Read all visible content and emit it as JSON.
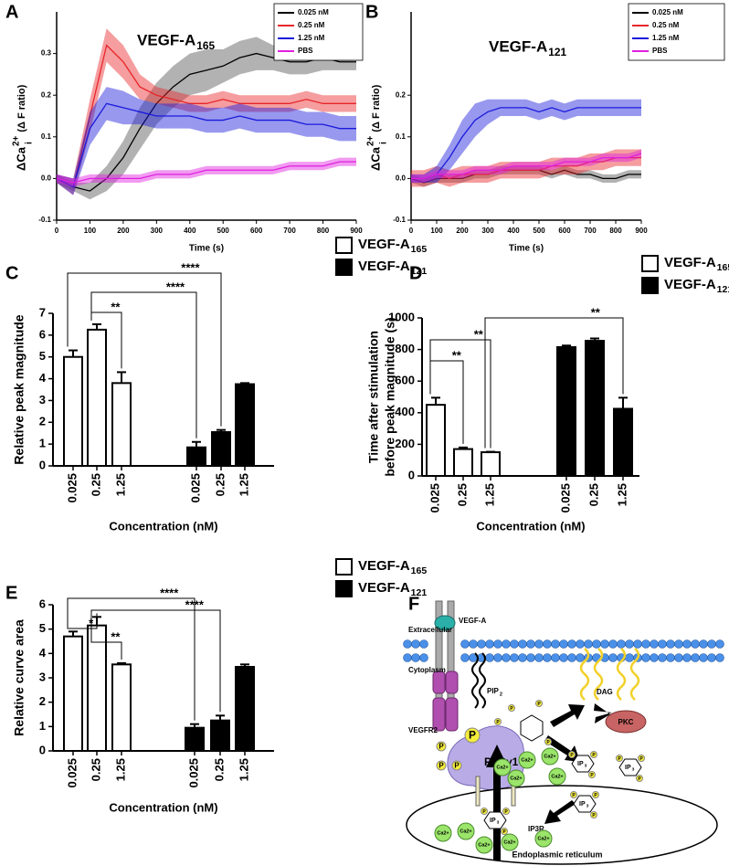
{
  "chart_data": [
    {
      "type": "line",
      "panel_label": "A",
      "title": "VEGF-A",
      "title_subscript": "165",
      "ylabel": "ΔCa",
      "ylabel_superscript": "2+",
      "ylabel_subscript": "i",
      "ylabel_suffix": "(Δ F ratio)",
      "xlabel": "Time (s)",
      "legend": "upper right",
      "x": [
        0,
        50,
        100,
        150,
        200,
        250,
        300,
        350,
        400,
        450,
        500,
        550,
        600,
        650,
        700,
        750,
        800,
        850,
        900
      ],
      "xlim": [
        0,
        900
      ],
      "xticks": [
        0,
        100,
        200,
        300,
        400,
        500,
        600,
        700,
        800,
        900
      ],
      "ylim": [
        -0.1,
        0.4
      ],
      "yticks": [
        -0.1,
        {
          "value": 0,
          "label": "0.0"
        },
        0.1,
        0.2,
        0.3
      ],
      "series": [
        {
          "name": "0.025 nM",
          "color": "#000000",
          "values": [
            0,
            -0.02,
            -0.03,
            0,
            0.05,
            0.12,
            0.18,
            0.22,
            0.25,
            0.26,
            0.27,
            0.29,
            0.3,
            0.29,
            0.28,
            0.28,
            0.29,
            0.28,
            0.28
          ],
          "error": [
            0.01,
            0.01,
            0.02,
            0.03,
            0.04,
            0.05,
            0.05,
            0.05,
            0.05,
            0.05,
            0.04,
            0.04,
            0.04,
            0.03,
            0.03,
            0.03,
            0.03,
            0.02,
            0.02
          ]
        },
        {
          "name": "0.25 nM",
          "color": "#e8262a",
          "values": [
            0,
            -0.02,
            0.15,
            0.32,
            0.28,
            0.22,
            0.2,
            0.19,
            0.18,
            0.18,
            0.19,
            0.18,
            0.18,
            0.18,
            0.18,
            0.19,
            0.18,
            0.18,
            0.18
          ],
          "error": [
            0.01,
            0.02,
            0.04,
            0.04,
            0.04,
            0.03,
            0.02,
            0.02,
            0.02,
            0.02,
            0.02,
            0.02,
            0.02,
            0.02,
            0.02,
            0.02,
            0.02,
            0.02,
            0.02
          ]
        },
        {
          "name": "1.25 nM",
          "color": "#1a1adb",
          "values": [
            0,
            -0.02,
            0.12,
            0.18,
            0.17,
            0.16,
            0.15,
            0.15,
            0.15,
            0.14,
            0.14,
            0.15,
            0.14,
            0.14,
            0.14,
            0.13,
            0.13,
            0.12,
            0.12
          ],
          "error": [
            0.01,
            0.02,
            0.04,
            0.04,
            0.04,
            0.03,
            0.03,
            0.03,
            0.03,
            0.03,
            0.03,
            0.03,
            0.03,
            0.03,
            0.03,
            0.03,
            0.03,
            0.03,
            0.03
          ]
        },
        {
          "name": "PBS",
          "color": "#e020e0",
          "values": [
            0,
            -0.01,
            0,
            0,
            0,
            0,
            0.01,
            0.01,
            0.01,
            0.02,
            0.02,
            0.02,
            0.02,
            0.02,
            0.03,
            0.03,
            0.03,
            0.04,
            0.04
          ],
          "error": [
            0.01,
            0.01,
            0.01,
            0.01,
            0.01,
            0.01,
            0.01,
            0.01,
            0.01,
            0.01,
            0.01,
            0.01,
            0.01,
            0.01,
            0.01,
            0.01,
            0.01,
            0.01,
            0.01
          ]
        }
      ]
    },
    {
      "type": "line",
      "panel_label": "B",
      "title": "VEGF-A",
      "title_subscript": "121",
      "ylabel": "ΔCa",
      "ylabel_superscript": "2+",
      "ylabel_subscript": "i",
      "ylabel_suffix": "(Δ F ratio)",
      "xlabel": "Time (s)",
      "legend": "upper right",
      "x": [
        0,
        50,
        100,
        150,
        200,
        250,
        300,
        350,
        400,
        450,
        500,
        550,
        600,
        650,
        700,
        750,
        800,
        850,
        900
      ],
      "xlim": [
        0,
        900
      ],
      "xticks": [
        0,
        100,
        200,
        300,
        400,
        500,
        600,
        700,
        800,
        900
      ],
      "ylim": [
        -0.1,
        0.4
      ],
      "yticks": [
        -0.1,
        {
          "value": 0,
          "label": "0.0"
        },
        0.1,
        0.2
      ],
      "series": [
        {
          "name": "0.025 nM",
          "color": "#000000",
          "values": [
            0,
            -0.01,
            0,
            0,
            0,
            0.01,
            0.01,
            0.02,
            0.02,
            0.02,
            0.02,
            0.01,
            0.02,
            0.01,
            0.01,
            0,
            0,
            0.01,
            0.01
          ],
          "error": [
            0.01,
            0.01,
            0.01,
            0.01,
            0.01,
            0.01,
            0.01,
            0.01,
            0.01,
            0.01,
            0.01,
            0.01,
            0.01,
            0.01,
            0.01,
            0.01,
            0.01,
            0.01,
            0.01
          ]
        },
        {
          "name": "0.25 nM",
          "color": "#e8262a",
          "values": [
            0,
            0,
            0.01,
            0,
            0.01,
            0.01,
            0.01,
            0.02,
            0.02,
            0.02,
            0.02,
            0.03,
            0.03,
            0.03,
            0.04,
            0.04,
            0.05,
            0.05,
            0.05
          ],
          "error": [
            0.02,
            0.02,
            0.02,
            0.02,
            0.02,
            0.02,
            0.02,
            0.02,
            0.02,
            0.02,
            0.02,
            0.02,
            0.02,
            0.02,
            0.02,
            0.02,
            0.02,
            0.02,
            0.02
          ]
        },
        {
          "name": "1.25 nM",
          "color": "#1a1adb",
          "values": [
            0,
            0,
            0.01,
            0.05,
            0.1,
            0.14,
            0.16,
            0.17,
            0.17,
            0.17,
            0.16,
            0.17,
            0.16,
            0.17,
            0.17,
            0.17,
            0.17,
            0.17,
            0.17
          ],
          "error": [
            0.01,
            0.01,
            0.02,
            0.03,
            0.04,
            0.04,
            0.03,
            0.02,
            0.02,
            0.02,
            0.02,
            0.02,
            0.02,
            0.02,
            0.02,
            0.02,
            0.02,
            0.02,
            0.02
          ]
        },
        {
          "name": "PBS",
          "color": "#e020e0",
          "values": [
            0,
            0,
            0.01,
            0.01,
            0.01,
            0.02,
            0.02,
            0.02,
            0.03,
            0.03,
            0.03,
            0.03,
            0.04,
            0.04,
            0.04,
            0.05,
            0.05,
            0.05,
            0.06
          ],
          "error": [
            0.01,
            0.01,
            0.01,
            0.01,
            0.01,
            0.01,
            0.01,
            0.01,
            0.01,
            0.01,
            0.01,
            0.01,
            0.01,
            0.01,
            0.01,
            0.01,
            0.01,
            0.01,
            0.01
          ]
        }
      ]
    },
    {
      "type": "bar",
      "panel_label": "C",
      "ylabel": "Relative peak magnitude",
      "xlabel": "Concentration (nM)",
      "categories": [
        "0.025",
        "0.25",
        "1.25"
      ],
      "ylim": [
        0,
        7
      ],
      "yticks": [
        0,
        1,
        2,
        3,
        4,
        5,
        6,
        7
      ],
      "series": [
        {
          "name": "VEGF-A",
          "name_subscript": "165",
          "color": "#ffffff",
          "values": [
            5.0,
            6.25,
            3.8
          ],
          "error": [
            0.3,
            0.25,
            0.5
          ]
        },
        {
          "name": "VEGF-A",
          "name_subscript": "121",
          "color": "#000000",
          "values": [
            0.85,
            1.55,
            3.75
          ],
          "error": [
            0.25,
            0.1,
            0.05
          ]
        }
      ],
      "significance": [
        {
          "from": [
            0,
            0
          ],
          "to": [
            1,
            1
          ],
          "label": "****"
        },
        {
          "from": [
            0,
            1
          ],
          "to": [
            1,
            0
          ],
          "label": "****"
        },
        {
          "from": [
            0,
            1
          ],
          "to": [
            0,
            2
          ],
          "label": "**"
        }
      ]
    },
    {
      "type": "bar",
      "panel_label": "D",
      "ylabel": [
        "Time after stimulation",
        "before peak magnitude (s)"
      ],
      "xlabel": "Concentration (nM)",
      "categories": [
        "0.025",
        "0.25",
        "1.25"
      ],
      "ylim": [
        0,
        1000
      ],
      "yticks": [
        0,
        200,
        400,
        600,
        800,
        1000
      ],
      "series": [
        {
          "name": "VEGF-A",
          "name_subscript": "165",
          "color": "#ffffff",
          "values": [
            450,
            170,
            150
          ],
          "error": [
            45,
            10,
            3
          ]
        },
        {
          "name": "VEGF-A",
          "name_subscript": "121",
          "color": "#000000",
          "values": [
            815,
            855,
            425
          ],
          "error": [
            10,
            15,
            70
          ]
        }
      ],
      "significance": [
        {
          "from": [
            0,
            2
          ],
          "to": [
            1,
            2
          ],
          "label": "**"
        },
        {
          "from": [
            0,
            0
          ],
          "to": [
            0,
            2
          ],
          "label": "**"
        },
        {
          "from": [
            0,
            0
          ],
          "to": [
            0,
            1
          ],
          "label": "**"
        }
      ]
    },
    {
      "type": "bar",
      "panel_label": "E",
      "ylabel": "Relative curve area",
      "xlabel": "Concentration (nM)",
      "categories": [
        "0.025",
        "0.25",
        "1.25"
      ],
      "ylim": [
        0,
        6
      ],
      "yticks": [
        0,
        1,
        2,
        3,
        4,
        5,
        6
      ],
      "series": [
        {
          "name": "VEGF-A",
          "name_subscript": "165",
          "color": "#ffffff",
          "values": [
            4.7,
            5.15,
            3.55
          ],
          "error": [
            0.2,
            0.35,
            0.05
          ]
        },
        {
          "name": "VEGF-A",
          "name_subscript": "121",
          "color": "#000000",
          "values": [
            0.95,
            1.25,
            3.45
          ],
          "error": [
            0.15,
            0.2,
            0.1
          ]
        }
      ],
      "significance": [
        {
          "from": [
            0,
            0
          ],
          "to": [
            1,
            0
          ],
          "label": "****"
        },
        {
          "from": [
            0,
            1
          ],
          "to": [
            1,
            1
          ],
          "label": "****"
        },
        {
          "from": [
            0,
            0
          ],
          "to": [
            0,
            1
          ],
          "label": "*"
        },
        {
          "from": [
            0,
            1
          ],
          "to": [
            0,
            2
          ],
          "label": "**"
        }
      ]
    }
  ],
  "diagram": {
    "panel_label": "F",
    "extracellular": "Extracellular",
    "cytoplasm": "Cytoplasm",
    "ligand": "VEGF-A",
    "pip": "PIP",
    "pip_subscript": "2",
    "dag": "DAG",
    "pkc": "PKC",
    "receptor": "VEGFR2",
    "phospho": "P",
    "plc": "PLCγ1",
    "ip": "IP",
    "ip_subscript": "3",
    "ip3r": "IP3R",
    "er": "Endoplasmic reticulum",
    "calcium": "Ca2+"
  }
}
